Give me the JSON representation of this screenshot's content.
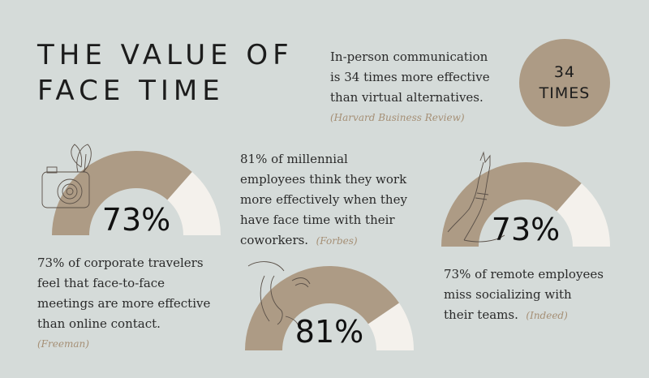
{
  "title": {
    "line1": "THE VALUE OF",
    "line2": "FACE TIME"
  },
  "colors": {
    "background": "#d5dbd9",
    "filled": "#ad9b85",
    "remainder": "#f4f1ec",
    "source": "#a58f75",
    "text": "#1c1c1c"
  },
  "top_stat": {
    "lines": [
      "In-person communication",
      "is 34 times more effective",
      "than virtual alternatives."
    ],
    "source": "(Harvard Business Review)",
    "badge_line1": "34",
    "badge_line2": "TIMES"
  },
  "stats": [
    {
      "lines": [
        "73% of corporate travelers",
        "feel that face-to-face",
        "meetings are more effective",
        "than online contact."
      ],
      "source": "(Freeman)"
    },
    {
      "lines": [
        "81% of millennial",
        "employees think they work",
        "more effectively when they",
        "have face time with their",
        "coworkers."
      ],
      "source": "(Forbes)"
    },
    {
      "lines": [
        "73% of remote employees",
        "miss socializing with",
        "their teams."
      ],
      "source": "(Indeed)"
    }
  ],
  "chart_data": [
    {
      "type": "pie",
      "categories": [
        "filled",
        "remainder"
      ],
      "values": [
        73,
        27
      ],
      "label": "73%"
    },
    {
      "type": "pie",
      "categories": [
        "filled",
        "remainder"
      ],
      "values": [
        81,
        19
      ],
      "label": "81%"
    },
    {
      "type": "pie",
      "categories": [
        "filled",
        "remainder"
      ],
      "values": [
        73,
        27
      ],
      "label": "73%"
    }
  ],
  "icons": [
    "camera-drawing-icon",
    "face-line-art-icon",
    "arm-line-art-icon"
  ]
}
